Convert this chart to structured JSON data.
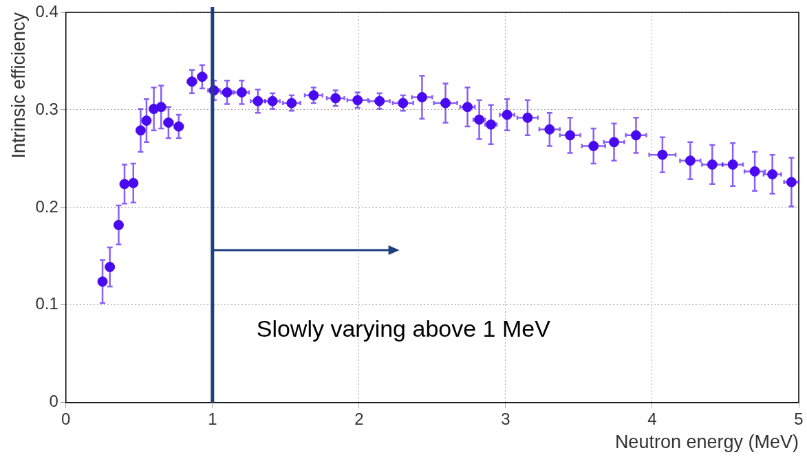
{
  "chart_data": {
    "type": "scatter",
    "xlabel": "Neutron energy (MeV)",
    "ylabel": "Intrinsic efficiency",
    "xlim": [
      0,
      5
    ],
    "xticks": [
      0,
      1,
      2,
      3,
      4,
      5
    ],
    "ylim": [
      0,
      0.4
    ],
    "yticks": [
      0,
      0.1,
      0.2,
      0.3,
      0.4
    ],
    "grid": true,
    "marker": "circle",
    "series": [
      {
        "color": "#4a0af0",
        "x": [
          0.25,
          0.3,
          0.36,
          0.4,
          0.46,
          0.51,
          0.55,
          0.6,
          0.65,
          0.7,
          0.77,
          0.86,
          0.93,
          1.01,
          1.1,
          1.2,
          1.31,
          1.41,
          1.54,
          1.69,
          1.84,
          1.99,
          2.14,
          2.3,
          2.43,
          2.59,
          2.74,
          2.82,
          2.9,
          3.01,
          3.15,
          3.3,
          3.44,
          3.6,
          3.74,
          3.89,
          4.07,
          4.26,
          4.41,
          4.55,
          4.7,
          4.82,
          4.95
        ],
        "values": [
          0.124,
          0.139,
          0.182,
          0.224,
          0.225,
          0.279,
          0.289,
          0.301,
          0.303,
          0.287,
          0.283,
          0.329,
          0.334,
          0.32,
          0.318,
          0.318,
          0.309,
          0.309,
          0.307,
          0.315,
          0.312,
          0.31,
          0.309,
          0.307,
          0.313,
          0.307,
          0.303,
          0.29,
          0.285,
          0.295,
          0.292,
          0.28,
          0.274,
          0.263,
          0.267,
          0.274,
          0.254,
          0.248,
          0.244,
          0.244,
          0.237,
          0.234,
          0.226
        ],
        "errors": [
          0.022,
          0.02,
          0.02,
          0.02,
          0.02,
          0.022,
          0.022,
          0.022,
          0.022,
          0.016,
          0.012,
          0.012,
          0.012,
          0.01,
          0.012,
          0.012,
          0.012,
          0.008,
          0.008,
          0.008,
          0.008,
          0.008,
          0.008,
          0.008,
          0.022,
          0.02,
          0.02,
          0.02,
          0.02,
          0.016,
          0.018,
          0.017,
          0.018,
          0.018,
          0.019,
          0.018,
          0.018,
          0.019,
          0.02,
          0.022,
          0.02,
          0.02,
          0.025
        ],
        "xerrors": [
          null,
          null,
          null,
          null,
          null,
          null,
          null,
          null,
          null,
          0.03,
          0.03,
          0.03,
          0.03,
          0.04,
          0.04,
          0.05,
          0.05,
          0.05,
          0.06,
          0.06,
          0.06,
          0.07,
          0.07,
          0.07,
          0.07,
          0.08,
          0.05,
          0.04,
          0.04,
          0.05,
          0.07,
          0.07,
          0.07,
          0.08,
          0.07,
          0.07,
          0.09,
          0.07,
          0.07,
          0.07,
          0.07,
          0.06,
          0.05
        ]
      }
    ],
    "ref_lines": [
      {
        "axis": "x",
        "value": 1,
        "color": "#1f3f80"
      }
    ],
    "annotations": [
      "Slowly varying above 1 MeV"
    ]
  }
}
